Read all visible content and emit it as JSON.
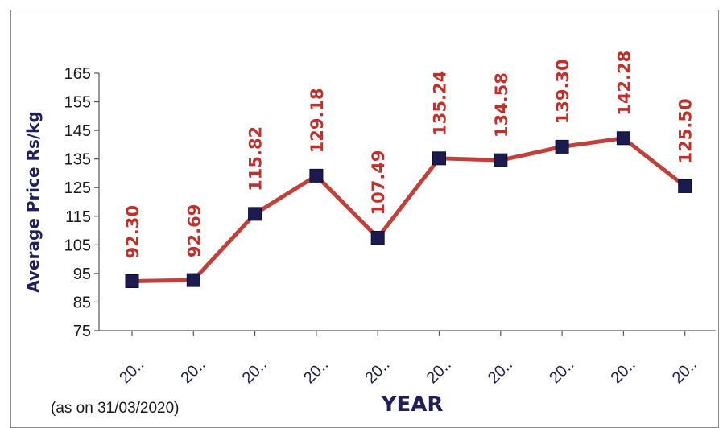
{
  "chart_data": {
    "type": "line",
    "categories": [
      "20..",
      "20..",
      "20..",
      "20..",
      "20..",
      "20..",
      "20..",
      "20..",
      "20..",
      "20.."
    ],
    "values": [
      92.3,
      92.69,
      115.82,
      129.18,
      107.49,
      135.24,
      134.58,
      139.3,
      142.28,
      125.5
    ],
    "data_labels": [
      "92.30",
      "92.69",
      "115.82",
      "129.18",
      "107.49",
      "135.24",
      "134.58",
      "139.30",
      "142.28",
      "125.50"
    ],
    "ylabel": "Average Price Rs/kg",
    "xlabel": "YEAR",
    "ylim": [
      75,
      165
    ],
    "yticks": [
      75,
      85,
      95,
      105,
      115,
      125,
      135,
      145,
      155,
      165
    ],
    "grid": false,
    "note": "(as on 31/03/2020)",
    "colors": {
      "line": "#c0403a",
      "marker": "#1b1b4f",
      "data_label": "#c0302b",
      "axis_title": "#1f1f5c"
    }
  }
}
